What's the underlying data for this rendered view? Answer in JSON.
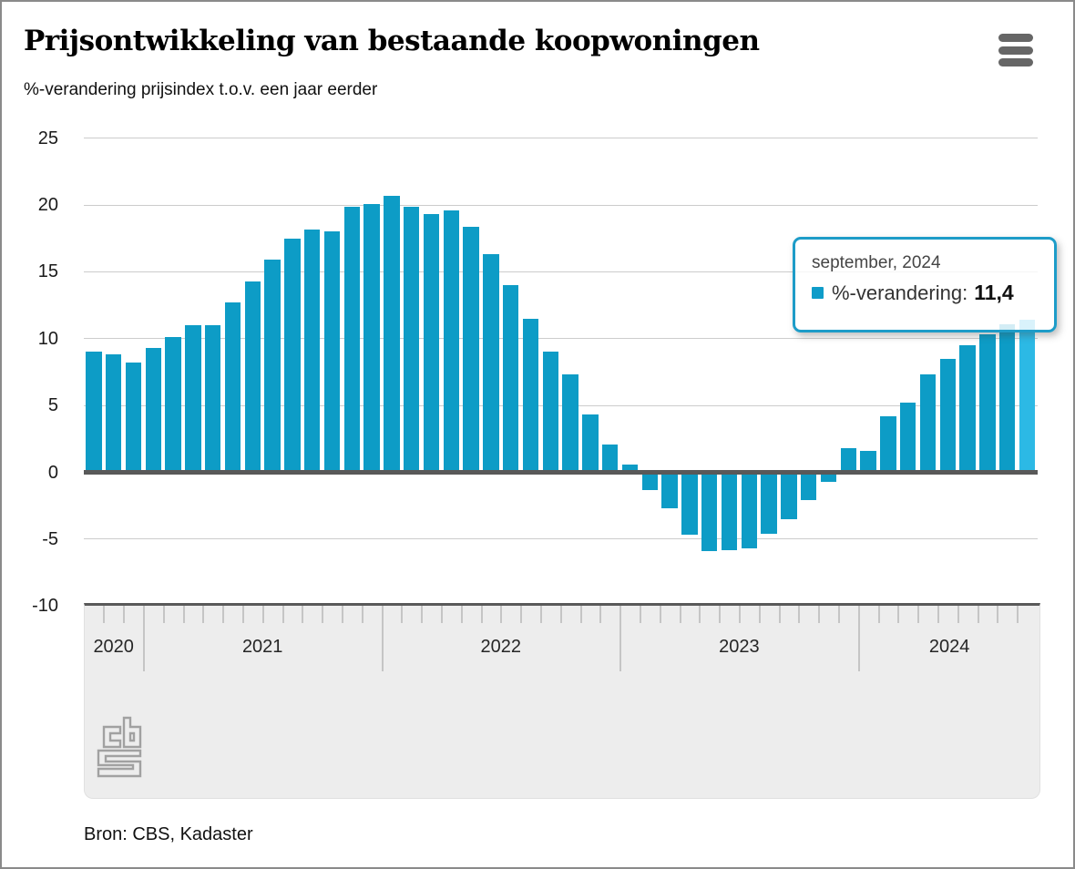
{
  "header": {
    "title": "Prijsontwikkeling van bestaande koopwoningen",
    "subtitle": "%-verandering prijsindex t.o.v. een jaar eerder"
  },
  "chart_data": {
    "type": "bar",
    "title": "Prijsontwikkeling van bestaande koopwoningen",
    "subtitle": "%-verandering prijsindex t.o.v. een jaar eerder",
    "ylabel": "%-verandering prijsindex t.o.v. een jaar eerder",
    "ylim": [
      -10,
      25
    ],
    "y_ticks": [
      25,
      20,
      15,
      10,
      5,
      0,
      -5,
      -10
    ],
    "grid": "horizontal",
    "legend_position": "none",
    "start_month": "2020-10",
    "end_month": "2024-09",
    "years": [
      {
        "label": "2020",
        "months": 3
      },
      {
        "label": "2021",
        "months": 12
      },
      {
        "label": "2022",
        "months": 12
      },
      {
        "label": "2023",
        "months": 12
      },
      {
        "label": "2024",
        "months": 9
      }
    ],
    "series": [
      {
        "name": "%-verandering",
        "values": [
          9.0,
          8.8,
          8.2,
          9.3,
          10.1,
          11.0,
          11.0,
          12.7,
          14.3,
          15.9,
          17.5,
          18.2,
          18.0,
          19.9,
          20.1,
          20.7,
          19.9,
          19.3,
          19.6,
          18.4,
          16.3,
          14.0,
          11.5,
          9.0,
          7.3,
          4.3,
          2.1,
          0.6,
          -1.3,
          -2.7,
          -4.7,
          -5.9,
          -5.8,
          -5.7,
          -4.6,
          -3.5,
          -2.1,
          -0.7,
          1.8,
          1.6,
          4.2,
          5.2,
          7.3,
          8.5,
          9.5,
          10.3,
          11.1,
          11.4
        ]
      }
    ],
    "highlight_index": 47,
    "colors": {
      "bar": "#0d9cc6",
      "bar_highlight": "#2cb9e5",
      "zero_line": "#595959",
      "grid_line": "#cccccc"
    }
  },
  "tooltip": {
    "date_label": "september, 2024",
    "series_label": "%-verandering:",
    "value": "11,4"
  },
  "footer": {
    "source": "Bron: CBS, Kadaster"
  }
}
